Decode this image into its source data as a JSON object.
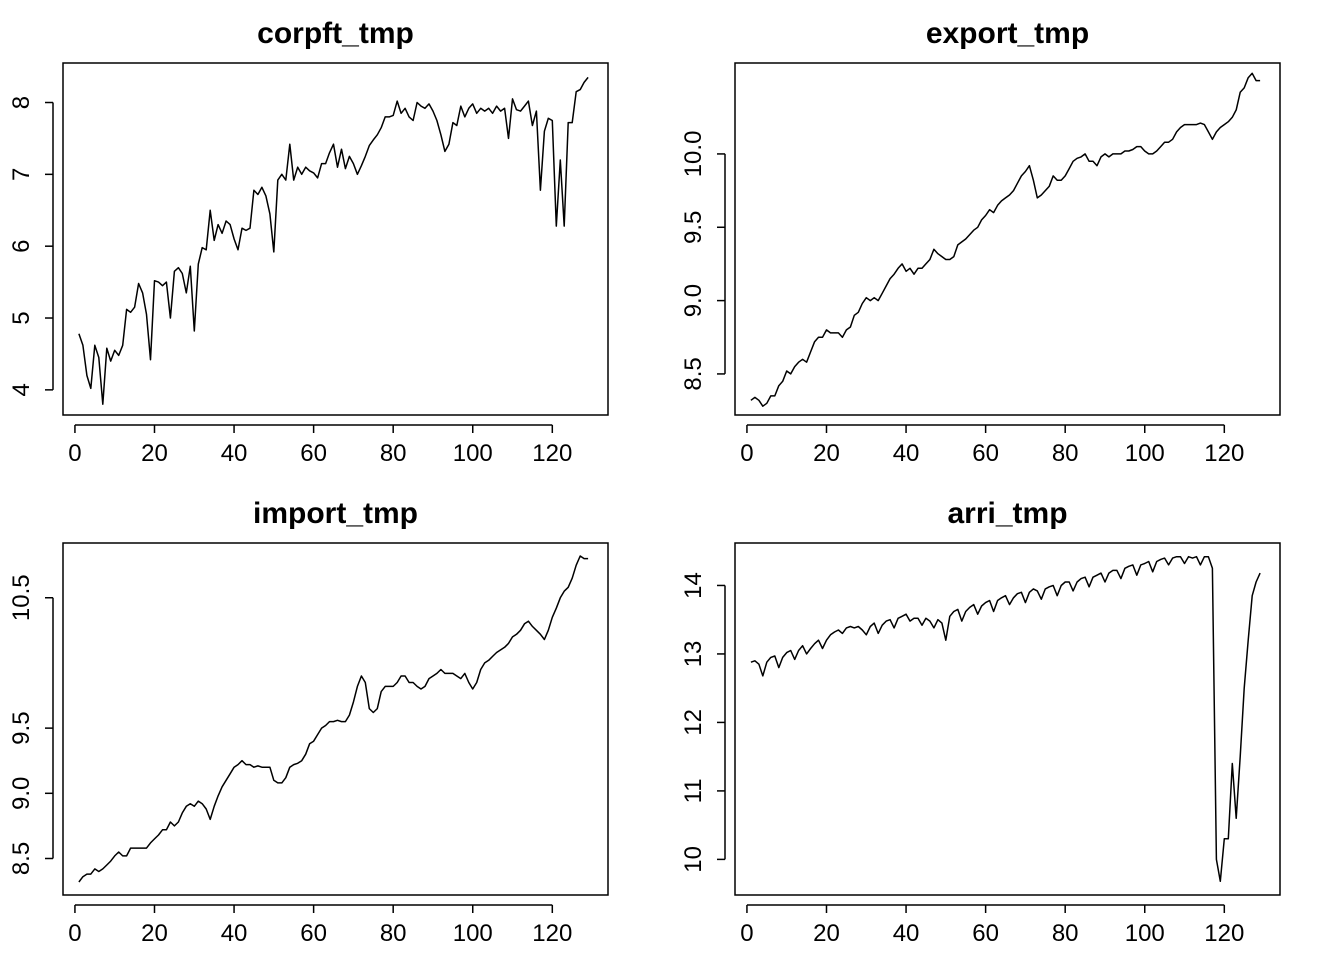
{
  "chart_data": [
    {
      "type": "line",
      "title": "corpft_tmp",
      "xlabel": "",
      "ylabel": "",
      "xlim": [
        -3,
        134
      ],
      "ylim": [
        3.65,
        8.55
      ],
      "xticks": [
        0,
        20,
        40,
        60,
        80,
        100,
        120
      ],
      "yticks": [
        4,
        5,
        6,
        7,
        8
      ],
      "grid": false,
      "series": [
        {
          "x": [
            1,
            2,
            3,
            4,
            5,
            6,
            7,
            8,
            9,
            10,
            11,
            12,
            13,
            14,
            15,
            16,
            17,
            18,
            19,
            20,
            21,
            22,
            23,
            24,
            25,
            26,
            27,
            28,
            29,
            30,
            31,
            32,
            33,
            34,
            35,
            36,
            37,
            38,
            39,
            40,
            41,
            42,
            43,
            44,
            45,
            46,
            47,
            48,
            49,
            50,
            51,
            52,
            53,
            54,
            55,
            56,
            57,
            58,
            59,
            60,
            61,
            62,
            63,
            64,
            65,
            66,
            67,
            68,
            69,
            70,
            71,
            72,
            73,
            74,
            75,
            76,
            77,
            78,
            79,
            80,
            81,
            82,
            83,
            84,
            85,
            86,
            87,
            88,
            89,
            90,
            91,
            92,
            93,
            94,
            95,
            96,
            97,
            98,
            99,
            100,
            101,
            102,
            103,
            104,
            105,
            106,
            107,
            108,
            109,
            110,
            111,
            112,
            113,
            114,
            115,
            116,
            117,
            118,
            119,
            120,
            121,
            122,
            123,
            124,
            125,
            126,
            127,
            128,
            129
          ],
          "y": [
            4.78,
            4.62,
            4.2,
            4.02,
            4.62,
            4.45,
            3.8,
            4.58,
            4.4,
            4.55,
            4.48,
            4.62,
            5.12,
            5.08,
            5.15,
            5.48,
            5.35,
            5.05,
            4.42,
            5.52,
            5.5,
            5.45,
            5.5,
            5.0,
            5.65,
            5.7,
            5.62,
            5.35,
            5.72,
            4.82,
            5.75,
            5.98,
            5.95,
            6.5,
            6.08,
            6.3,
            6.18,
            6.35,
            6.3,
            6.1,
            5.95,
            6.25,
            6.22,
            6.25,
            6.78,
            6.72,
            6.82,
            6.7,
            6.45,
            5.92,
            6.92,
            7.0,
            6.92,
            7.42,
            6.92,
            7.1,
            7.0,
            7.1,
            7.05,
            7.02,
            6.95,
            7.15,
            7.15,
            7.3,
            7.42,
            7.1,
            7.35,
            7.08,
            7.25,
            7.15,
            7.0,
            7.12,
            7.25,
            7.4,
            7.48,
            7.55,
            7.65,
            7.8,
            7.8,
            7.82,
            8.02,
            7.85,
            7.92,
            7.8,
            7.75,
            8.0,
            7.95,
            7.92,
            7.98,
            7.88,
            7.75,
            7.55,
            7.32,
            7.42,
            7.72,
            7.68,
            7.95,
            7.8,
            7.92,
            7.98,
            7.85,
            7.92,
            7.88,
            7.92,
            7.85,
            7.95,
            7.88,
            7.92,
            7.5,
            8.05,
            7.9,
            7.88,
            7.95,
            8.02,
            7.68,
            7.88,
            6.78,
            7.6,
            7.78,
            7.75,
            6.28,
            7.2,
            6.28,
            7.72,
            7.72,
            8.15,
            8.18,
            8.28,
            8.35
          ]
        }
      ]
    },
    {
      "type": "line",
      "title": "export_tmp",
      "xlabel": "",
      "ylabel": "",
      "xlim": [
        -3,
        134
      ],
      "ylim": [
        8.22,
        10.62
      ],
      "xticks": [
        0,
        20,
        40,
        60,
        80,
        100,
        120
      ],
      "yticks": [
        8.5,
        9.0,
        9.5,
        10.0
      ],
      "ytick_labels": [
        "8.5",
        "9.0",
        "9.5",
        "10.0"
      ],
      "grid": false,
      "series": [
        {
          "x": [
            1,
            2,
            3,
            4,
            5,
            6,
            7,
            8,
            9,
            10,
            11,
            12,
            13,
            14,
            15,
            16,
            17,
            18,
            19,
            20,
            21,
            22,
            23,
            24,
            25,
            26,
            27,
            28,
            29,
            30,
            31,
            32,
            33,
            34,
            35,
            36,
            37,
            38,
            39,
            40,
            41,
            42,
            43,
            44,
            45,
            46,
            47,
            48,
            49,
            50,
            51,
            52,
            53,
            54,
            55,
            56,
            57,
            58,
            59,
            60,
            61,
            62,
            63,
            64,
            65,
            66,
            67,
            68,
            69,
            70,
            71,
            72,
            73,
            74,
            75,
            76,
            77,
            78,
            79,
            80,
            81,
            82,
            83,
            84,
            85,
            86,
            87,
            88,
            89,
            90,
            91,
            92,
            93,
            94,
            95,
            96,
            97,
            98,
            99,
            100,
            101,
            102,
            103,
            104,
            105,
            106,
            107,
            108,
            109,
            110,
            111,
            112,
            113,
            114,
            115,
            116,
            117,
            118,
            119,
            120,
            121,
            122,
            123,
            124,
            125,
            126,
            127,
            128,
            129
          ],
          "y": [
            8.32,
            8.34,
            8.32,
            8.28,
            8.3,
            8.35,
            8.35,
            8.42,
            8.45,
            8.52,
            8.5,
            8.55,
            8.58,
            8.6,
            8.58,
            8.65,
            8.72,
            8.75,
            8.75,
            8.8,
            8.78,
            8.78,
            8.78,
            8.75,
            8.8,
            8.82,
            8.9,
            8.92,
            8.98,
            9.02,
            9.0,
            9.02,
            9.0,
            9.05,
            9.1,
            9.15,
            9.18,
            9.22,
            9.25,
            9.2,
            9.22,
            9.18,
            9.22,
            9.22,
            9.25,
            9.28,
            9.35,
            9.32,
            9.3,
            9.28,
            9.28,
            9.3,
            9.38,
            9.4,
            9.42,
            9.45,
            9.48,
            9.5,
            9.55,
            9.58,
            9.62,
            9.6,
            9.65,
            9.68,
            9.7,
            9.72,
            9.75,
            9.8,
            9.85,
            9.88,
            9.92,
            9.82,
            9.7,
            9.72,
            9.75,
            9.78,
            9.85,
            9.82,
            9.82,
            9.85,
            9.9,
            9.95,
            9.97,
            9.98,
            10.0,
            9.95,
            9.95,
            9.92,
            9.98,
            10.0,
            9.98,
            10.0,
            10.0,
            10.0,
            10.02,
            10.02,
            10.03,
            10.05,
            10.05,
            10.02,
            10.0,
            10.0,
            10.02,
            10.05,
            10.08,
            10.08,
            10.1,
            10.15,
            10.18,
            10.2,
            10.2,
            10.2,
            10.2,
            10.21,
            10.2,
            10.15,
            10.1,
            10.15,
            10.18,
            10.2,
            10.22,
            10.25,
            10.3,
            10.42,
            10.45,
            10.52,
            10.55,
            10.5,
            10.5
          ]
        }
      ]
    },
    {
      "type": "line",
      "title": "import_tmp",
      "xlabel": "",
      "ylabel": "",
      "xlim": [
        -3,
        134
      ],
      "ylim": [
        8.22,
        10.92
      ],
      "xticks": [
        0,
        20,
        40,
        60,
        80,
        100,
        120
      ],
      "yticks": [
        8.5,
        9.0,
        9.5,
        10.5
      ],
      "ytick_labels": [
        "8.5",
        "9.0",
        "9.5",
        "10.5"
      ],
      "grid": false,
      "series": [
        {
          "x": [
            1,
            2,
            3,
            4,
            5,
            6,
            7,
            8,
            9,
            10,
            11,
            12,
            13,
            14,
            15,
            16,
            17,
            18,
            19,
            20,
            21,
            22,
            23,
            24,
            25,
            26,
            27,
            28,
            29,
            30,
            31,
            32,
            33,
            34,
            35,
            36,
            37,
            38,
            39,
            40,
            41,
            42,
            43,
            44,
            45,
            46,
            47,
            48,
            49,
            50,
            51,
            52,
            53,
            54,
            55,
            56,
            57,
            58,
            59,
            60,
            61,
            62,
            63,
            64,
            65,
            66,
            67,
            68,
            69,
            70,
            71,
            72,
            73,
            74,
            75,
            76,
            77,
            78,
            79,
            80,
            81,
            82,
            83,
            84,
            85,
            86,
            87,
            88,
            89,
            90,
            91,
            92,
            93,
            94,
            95,
            96,
            97,
            98,
            99,
            100,
            101,
            102,
            103,
            104,
            105,
            106,
            107,
            108,
            109,
            110,
            111,
            112,
            113,
            114,
            115,
            116,
            117,
            118,
            119,
            120,
            121,
            122,
            123,
            124,
            125,
            126,
            127,
            128,
            129
          ],
          "y": [
            8.32,
            8.36,
            8.38,
            8.38,
            8.42,
            8.4,
            8.42,
            8.45,
            8.48,
            8.52,
            8.55,
            8.52,
            8.52,
            8.58,
            8.58,
            8.58,
            8.58,
            8.58,
            8.62,
            8.65,
            8.68,
            8.72,
            8.72,
            8.78,
            8.75,
            8.78,
            8.85,
            8.9,
            8.92,
            8.9,
            8.94,
            8.92,
            8.88,
            8.8,
            8.9,
            8.98,
            9.05,
            9.1,
            9.15,
            9.2,
            9.22,
            9.25,
            9.22,
            9.22,
            9.2,
            9.21,
            9.2,
            9.2,
            9.2,
            9.1,
            9.08,
            9.08,
            9.12,
            9.2,
            9.22,
            9.23,
            9.25,
            9.3,
            9.38,
            9.4,
            9.45,
            9.5,
            9.52,
            9.55,
            9.55,
            9.56,
            9.55,
            9.55,
            9.6,
            9.7,
            9.82,
            9.9,
            9.85,
            9.65,
            9.62,
            9.65,
            9.78,
            9.82,
            9.82,
            9.82,
            9.85,
            9.9,
            9.9,
            9.85,
            9.85,
            9.82,
            9.8,
            9.82,
            9.88,
            9.9,
            9.92,
            9.95,
            9.92,
            9.92,
            9.92,
            9.9,
            9.88,
            9.92,
            9.85,
            9.8,
            9.85,
            9.95,
            10.0,
            10.02,
            10.05,
            10.08,
            10.1,
            10.12,
            10.15,
            10.2,
            10.22,
            10.25,
            10.3,
            10.32,
            10.28,
            10.25,
            10.22,
            10.18,
            10.25,
            10.35,
            10.42,
            10.5,
            10.55,
            10.58,
            10.65,
            10.75,
            10.82,
            10.8,
            10.8
          ]
        }
      ]
    },
    {
      "type": "line",
      "title": "arri_tmp",
      "xlabel": "",
      "ylabel": "",
      "xlim": [
        -3,
        134
      ],
      "ylim": [
        9.48,
        14.62
      ],
      "xticks": [
        0,
        20,
        40,
        60,
        80,
        100,
        120
      ],
      "yticks": [
        10,
        11,
        12,
        13,
        14
      ],
      "grid": false,
      "series": [
        {
          "x": [
            1,
            2,
            3,
            4,
            5,
            6,
            7,
            8,
            9,
            10,
            11,
            12,
            13,
            14,
            15,
            16,
            17,
            18,
            19,
            20,
            21,
            22,
            23,
            24,
            25,
            26,
            27,
            28,
            29,
            30,
            31,
            32,
            33,
            34,
            35,
            36,
            37,
            38,
            39,
            40,
            41,
            42,
            43,
            44,
            45,
            46,
            47,
            48,
            49,
            50,
            51,
            52,
            53,
            54,
            55,
            56,
            57,
            58,
            59,
            60,
            61,
            62,
            63,
            64,
            65,
            66,
            67,
            68,
            69,
            70,
            71,
            72,
            73,
            74,
            75,
            76,
            77,
            78,
            79,
            80,
            81,
            82,
            83,
            84,
            85,
            86,
            87,
            88,
            89,
            90,
            91,
            92,
            93,
            94,
            95,
            96,
            97,
            98,
            99,
            100,
            101,
            102,
            103,
            104,
            105,
            106,
            107,
            108,
            109,
            110,
            111,
            112,
            113,
            114,
            115,
            116,
            117,
            118,
            119,
            120,
            121,
            122,
            123,
            124,
            125,
            126,
            127,
            128,
            129
          ],
          "y": [
            12.88,
            12.9,
            12.85,
            12.68,
            12.88,
            12.95,
            12.97,
            12.8,
            12.95,
            13.02,
            13.05,
            12.92,
            13.05,
            13.12,
            13.0,
            13.08,
            13.15,
            13.2,
            13.08,
            13.2,
            13.28,
            13.32,
            13.35,
            13.3,
            13.38,
            13.4,
            13.38,
            13.4,
            13.35,
            13.28,
            13.4,
            13.45,
            13.3,
            13.42,
            13.48,
            13.5,
            13.38,
            13.52,
            13.55,
            13.58,
            13.48,
            13.52,
            13.52,
            13.42,
            13.52,
            13.48,
            13.38,
            13.5,
            13.45,
            13.2,
            13.55,
            13.62,
            13.65,
            13.48,
            13.62,
            13.68,
            13.72,
            13.58,
            13.7,
            13.75,
            13.78,
            13.62,
            13.78,
            13.82,
            13.85,
            13.72,
            13.82,
            13.88,
            13.9,
            13.75,
            13.9,
            13.95,
            13.92,
            13.8,
            13.95,
            13.98,
            14.0,
            13.85,
            14.0,
            14.05,
            14.05,
            13.92,
            14.05,
            14.1,
            14.12,
            13.98,
            14.12,
            14.15,
            14.18,
            14.05,
            14.18,
            14.22,
            14.22,
            14.1,
            14.25,
            14.28,
            14.3,
            14.15,
            14.3,
            14.32,
            14.35,
            14.2,
            14.35,
            14.38,
            14.4,
            14.3,
            14.4,
            14.42,
            14.42,
            14.32,
            14.42,
            14.4,
            14.42,
            14.3,
            14.42,
            14.42,
            14.25,
            10.0,
            9.68,
            10.3,
            10.3,
            11.4,
            10.6,
            11.5,
            12.5,
            13.2,
            13.85,
            14.05,
            14.18
          ]
        }
      ]
    }
  ]
}
